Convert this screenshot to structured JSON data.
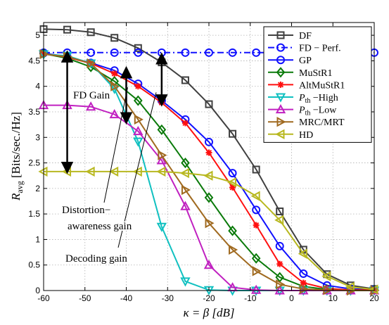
{
  "chart_data": {
    "type": "line",
    "title": "",
    "xlabel": "κ = β  [dB]",
    "ylabel_main": "R",
    "ylabel_sub": "avg",
    "ylabel_unit": " [Bits/sec./Hz]",
    "xlim": [
      -60,
      20
    ],
    "ylim": [
      0,
      5.25
    ],
    "xticks": [
      -60,
      -50,
      -40,
      -30,
      -20,
      -10,
      0,
      10,
      20
    ],
    "yticks": [
      0,
      0.5,
      1,
      1.5,
      2,
      2.5,
      3,
      3.5,
      4,
      4.5,
      5
    ],
    "grid": true,
    "legend_position": "top-right",
    "x": [
      -60,
      -54.29,
      -48.57,
      -42.86,
      -37.14,
      -31.43,
      -25.71,
      -20,
      -14.29,
      -8.57,
      -2.86,
      2.86,
      8.57,
      14.29,
      20
    ],
    "series": [
      {
        "name": "DF",
        "color": "#404040",
        "marker": "square",
        "dash": "solid",
        "values": [
          5.12,
          5.11,
          5.06,
          4.95,
          4.75,
          4.47,
          4.12,
          3.65,
          3.07,
          2.37,
          1.55,
          0.8,
          0.32,
          0.1,
          0.03
        ]
      },
      {
        "name": "FD − Perf.",
        "color": "#1010ff",
        "marker": "circle",
        "dash": "dashdot",
        "values": [
          4.66,
          4.66,
          4.66,
          4.66,
          4.66,
          4.66,
          4.66,
          4.66,
          4.66,
          4.66,
          4.66,
          4.66,
          4.66,
          4.66,
          4.66
        ]
      },
      {
        "name": "GP",
        "color": "#1010ff",
        "marker": "circle",
        "dash": "solid",
        "values": [
          4.65,
          4.58,
          4.46,
          4.31,
          4.05,
          3.72,
          3.35,
          2.91,
          2.3,
          1.58,
          0.87,
          0.33,
          0.1,
          0.03,
          0.02
        ]
      },
      {
        "name": "MuStR1",
        "color": "#0a7a0a",
        "marker": "diamond",
        "dash": "solid",
        "values": [
          4.64,
          4.55,
          4.38,
          4.1,
          3.72,
          3.15,
          2.5,
          1.82,
          1.17,
          0.63,
          0.26,
          0.08,
          0.02,
          0.01,
          0.01
        ]
      },
      {
        "name": "AltMuStR1",
        "color": "#ff1010",
        "marker": "star",
        "dash": "solid",
        "values": [
          4.64,
          4.57,
          4.45,
          4.25,
          4.0,
          3.68,
          3.28,
          2.7,
          2.02,
          1.28,
          0.52,
          0.15,
          0.04,
          0.01,
          0.01
        ]
      },
      {
        "name": "P_th − High",
        "label_main": "P",
        "label_sub": "th",
        "label_rest": " −High",
        "color": "#10c0c0",
        "marker": "triangle-down",
        "dash": "solid",
        "values": [
          4.63,
          4.6,
          4.45,
          3.95,
          2.92,
          1.25,
          0.18,
          0.01,
          0.0,
          0.0,
          0.0,
          0.0,
          0.0,
          0.0,
          0.0
        ]
      },
      {
        "name": "P_th − Low",
        "label_main": "P",
        "label_sub": "th",
        "label_rest": " −Low",
        "color": "#c020c0",
        "marker": "triangle-up",
        "dash": "solid",
        "values": [
          3.63,
          3.63,
          3.6,
          3.45,
          3.12,
          2.55,
          1.65,
          0.5,
          0.06,
          0.01,
          0.0,
          0.0,
          0.0,
          0.0,
          0.0
        ]
      },
      {
        "name": "MRC/MRT",
        "color": "#a06a20",
        "marker": "triangle-right",
        "dash": "solid",
        "values": [
          4.63,
          4.58,
          4.45,
          4.0,
          3.35,
          2.65,
          1.97,
          1.32,
          0.8,
          0.38,
          0.12,
          0.03,
          0.01,
          0.0,
          0.0
        ]
      },
      {
        "name": "HD",
        "color": "#b8b820",
        "marker": "triangle-left",
        "dash": "solid",
        "values": [
          2.33,
          2.33,
          2.33,
          2.33,
          2.33,
          2.33,
          2.3,
          2.25,
          2.12,
          1.85,
          1.38,
          0.72,
          0.28,
          0.07,
          0.02
        ]
      }
    ],
    "annotations": {
      "fd_gain": {
        "text": "FD Gain",
        "x": -54.29,
        "y_from": 4.66,
        "y_to": 2.33
      },
      "distortion_label_1": "Distortion−",
      "distortion_label_2": "awareness gain",
      "decoding_label": "Decoding gain",
      "arrow_a": {
        "x": -40,
        "y_from": 4.35,
        "y_to": 3.3
      },
      "arrow_b": {
        "x": -31.43,
        "y_from": 4.62,
        "y_to": 3.65
      }
    }
  }
}
